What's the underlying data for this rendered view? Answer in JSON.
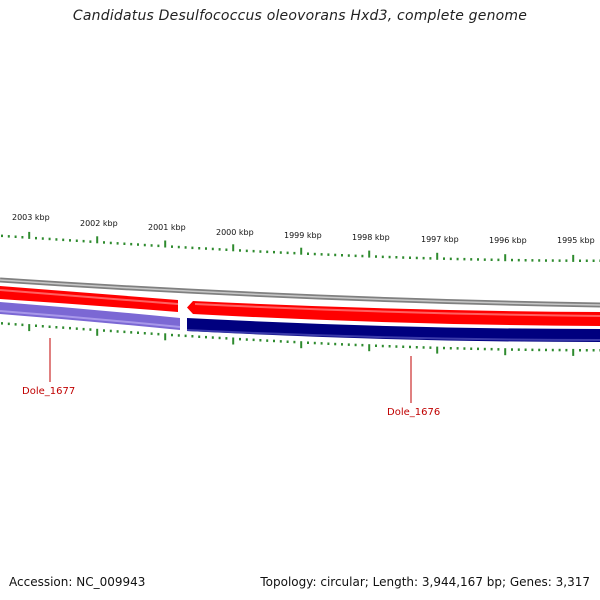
{
  "title": "Candidatus Desulfococcus oleovorans Hxd3, complete genome",
  "footer": {
    "accession": "Accession: NC_009943",
    "summary": "Topology: circular; Length: 3,944,167 bp; Genes: 3,317"
  },
  "kbp_labels": [
    "2003 kbp",
    "2002 kbp",
    "2001 kbp",
    "2000 kbp",
    "1999 kbp",
    "1998 kbp",
    "1997 kbp",
    "1996 kbp",
    "1995 kbp"
  ],
  "genes": [
    {
      "name": "Dole_1677",
      "strand": "minus",
      "color": "#7b68d4"
    },
    {
      "name": "Dole_1676",
      "strand": "minus",
      "color": "#00007f"
    },
    {
      "name": "",
      "strand": "plus",
      "color": "#ff0000"
    },
    {
      "name": "",
      "strand": "plus",
      "color": "#ff0000"
    }
  ],
  "colors": {
    "backbone": "#808080",
    "plus_strand": "#ff0000",
    "minus_strand_light": "#7b68d4",
    "minus_strand_dark": "#00007f",
    "ticks": "#2e8b2e",
    "gene_label": "#c00000"
  }
}
